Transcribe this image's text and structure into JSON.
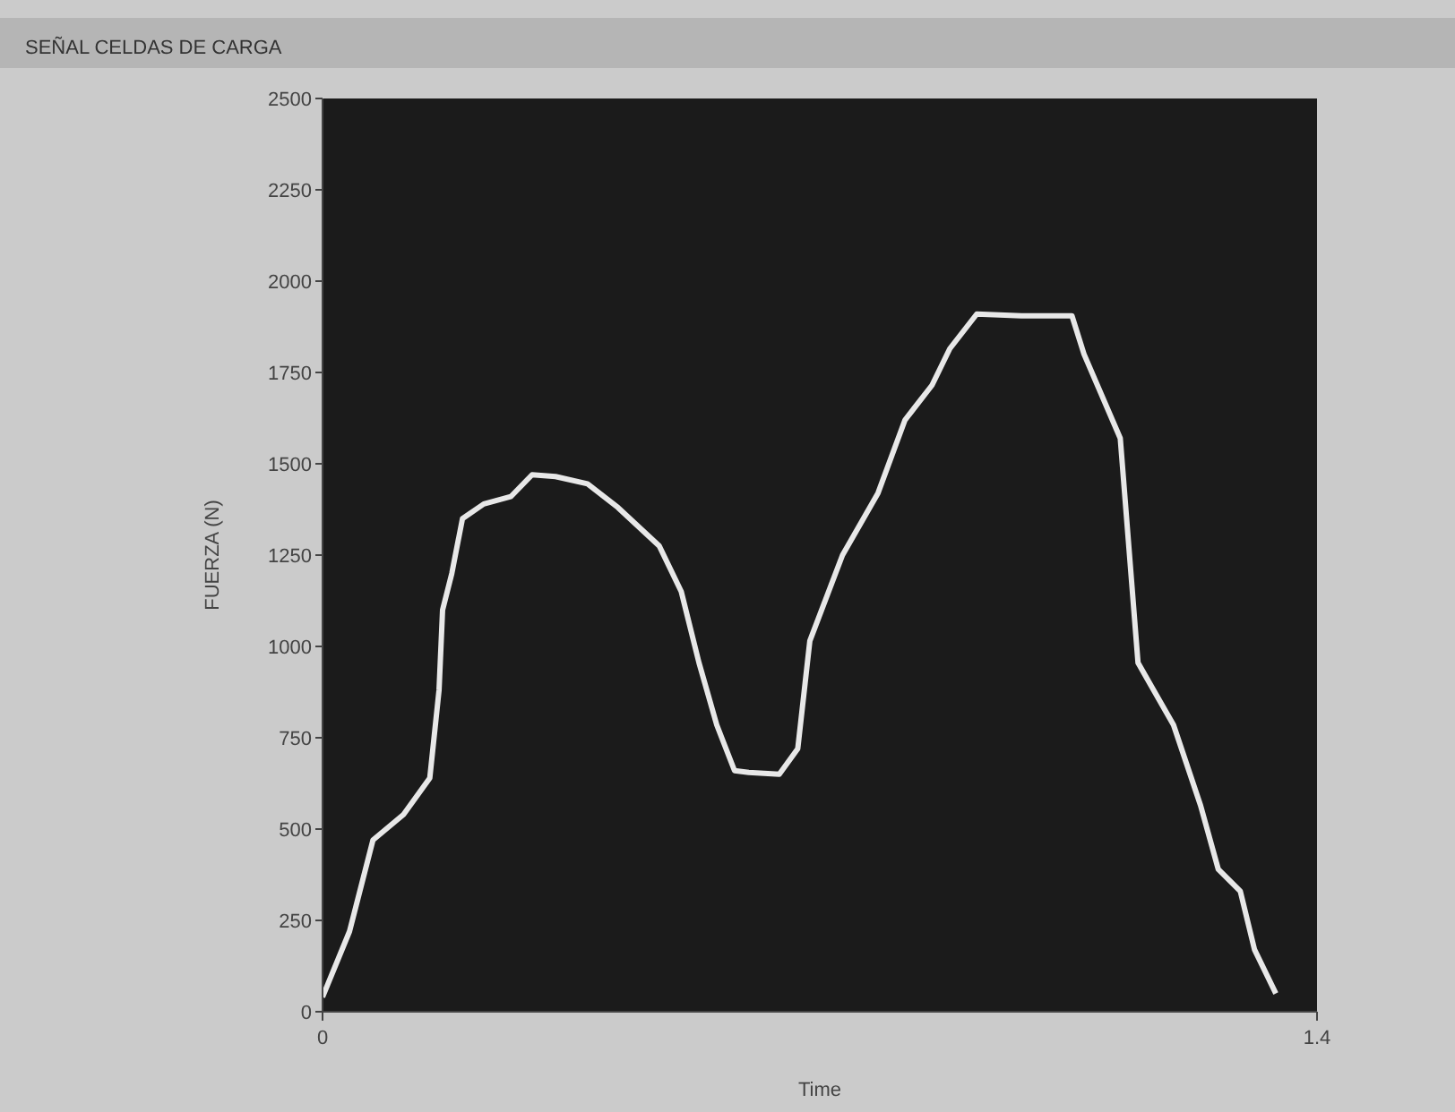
{
  "chart_data": {
    "type": "line",
    "title": "SEÑAL CELDAS DE CARGA",
    "xlabel": "Time",
    "ylabel": "FUERZA (N)",
    "x": [
      0,
      0.038,
      0.071,
      0.114,
      0.151,
      0.164,
      0.169,
      0.182,
      0.197,
      0.227,
      0.265,
      0.295,
      0.328,
      0.373,
      0.416,
      0.474,
      0.505,
      0.53,
      0.555,
      0.58,
      0.6,
      0.643,
      0.669,
      0.686,
      0.732,
      0.782,
      0.82,
      0.858,
      0.883,
      0.921,
      0.984,
      1.055,
      1.072,
      1.123,
      1.148,
      1.198,
      1.236,
      1.261,
      1.292,
      1.312,
      1.342
    ],
    "series": [
      {
        "color": "#e8e8e8",
        "values": [
          40,
          220,
          470,
          540,
          640,
          880,
          1100,
          1200,
          1350,
          1390,
          1410,
          1470,
          1465,
          1445,
          1380,
          1275,
          1150,
          955,
          785,
          660,
          655,
          650,
          720,
          1015,
          1250,
          1420,
          1620,
          1715,
          1815,
          1910,
          1905,
          1905,
          1800,
          1570,
          955,
          785,
          565,
          390,
          330,
          170,
          50
        ]
      }
    ],
    "xlim": [
      0,
      1.4
    ],
    "xticks": [
      0,
      1.4
    ],
    "ylim": [
      0,
      2500
    ],
    "yticks": [
      0,
      250,
      500,
      750,
      1000,
      1250,
      1500,
      1750,
      2000,
      2250,
      2500
    ],
    "grid": false,
    "marker": "none",
    "line_style": "solid"
  }
}
